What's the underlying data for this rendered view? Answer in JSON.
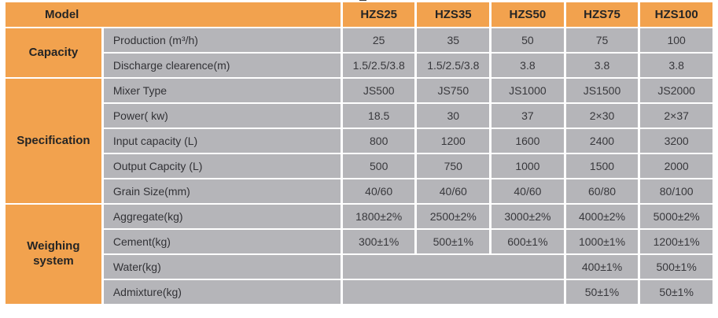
{
  "theme": {
    "page-bg": "#ffffff",
    "header-bg": "#F2A24E",
    "cell-bg": "#B5B5B9",
    "grid": "#ffffff",
    "head-text": "#252525",
    "label-text": "#323236",
    "value-text": "#38383c"
  },
  "table": {
    "header": {
      "model_label": "Model",
      "columns": [
        "HZS25",
        "HZS35",
        "HZS50",
        "HZS75",
        "HZS100"
      ]
    },
    "sections": [
      {
        "name": "Capacity",
        "rows": [
          {
            "label": "Production (m³/h)",
            "values": [
              "25",
              "35",
              "50",
              "75",
              "100"
            ]
          },
          {
            "label": "Discharge clearence(m)",
            "values": [
              "1.5/2.5/3.8",
              "1.5/2.5/3.8",
              "3.8",
              "3.8",
              "3.8"
            ]
          }
        ]
      },
      {
        "name": "Specification",
        "rows": [
          {
            "label": "Mixer Type",
            "values": [
              "JS500",
              "JS750",
              "JS1000",
              "JS1500",
              "JS2000"
            ]
          },
          {
            "label": "Power( kw)",
            "values": [
              "18.5",
              "30",
              "37",
              "2×30",
              "2×37"
            ]
          },
          {
            "label": "Input capacity (L)",
            "values": [
              "800",
              "1200",
              "1600",
              "2400",
              "3200"
            ]
          },
          {
            "label": "Output Capcity (L)",
            "values": [
              "500",
              "750",
              "1000",
              "1500",
              "2000"
            ]
          },
          {
            "label": "Grain Size(mm)",
            "values": [
              "40/60",
              "40/60",
              "40/60",
              "60/80",
              "80/100"
            ]
          }
        ]
      },
      {
        "name": "Weighing system",
        "rows": [
          {
            "label": "Aggregate(kg)",
            "values": [
              "1800±2%",
              "2500±2%",
              "3000±2%",
              "4000±2%",
              "5000±2%"
            ]
          },
          {
            "label": "Cement(kg)",
            "values": [
              "300±1%",
              "500±1%",
              "600±1%",
              "1000±1%",
              "1200±1%"
            ]
          },
          {
            "label": "Water(kg)",
            "blank_span": 3,
            "values": [
              "400±1%",
              "500±1%"
            ]
          },
          {
            "label": "Admixture(kg)",
            "blank_span": 3,
            "values": [
              "50±1%",
              "50±1%"
            ]
          }
        ]
      }
    ]
  }
}
